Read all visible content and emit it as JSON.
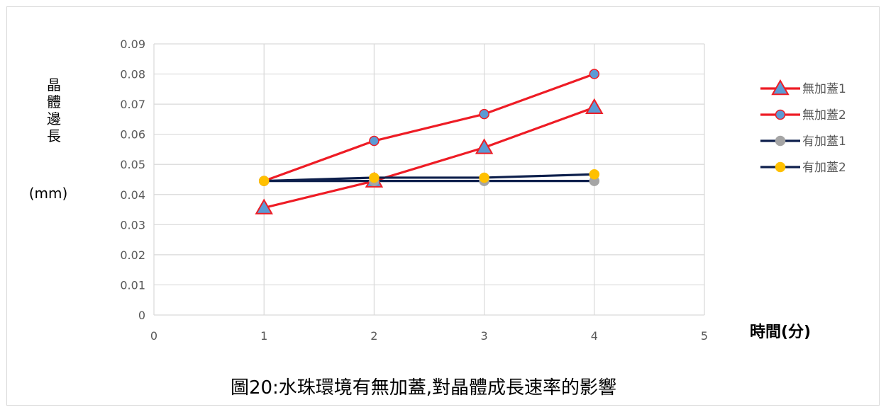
{
  "chart_data": {
    "type": "line",
    "title": "圖20:水珠環境有無加蓋,對晶體成長速率的影響",
    "xlabel": "時間(分)",
    "ylabel_chars": [
      "晶",
      "體",
      "邊",
      "長"
    ],
    "ylabel_unit": "(mm)",
    "xlim": [
      0,
      5
    ],
    "ylim": [
      0,
      0.09
    ],
    "x_ticks": [
      "0",
      "1",
      "2",
      "3",
      "4",
      "5"
    ],
    "y_ticks": [
      "0",
      "0.01",
      "0.02",
      "0.03",
      "0.04",
      "0.05",
      "0.06",
      "0.07",
      "0.08",
      "0.09"
    ],
    "grid": true,
    "legend_position": "right",
    "x": [
      1,
      2,
      3,
      4
    ],
    "series": [
      {
        "name": "無加蓋1",
        "values": [
          0.0356,
          0.0445,
          0.0556,
          0.0689
        ],
        "line_color": "#ee1c25",
        "marker": "triangle",
        "marker_fill": "#5b9bd5",
        "marker_stroke": "#ee1c25"
      },
      {
        "name": "無加蓋2",
        "values": [
          0.0445,
          0.0578,
          0.0667,
          0.08
        ],
        "line_color": "#ee1c25",
        "marker": "circle",
        "marker_fill": "#5b9bd5",
        "marker_stroke": "#ee1c25"
      },
      {
        "name": "有加蓋1",
        "values": [
          0.0445,
          0.0445,
          0.0445,
          0.0445
        ],
        "line_color": "#0d1f4c",
        "marker": "circle",
        "marker_fill": "#a5a5a5",
        "marker_stroke": "#a5a5a5"
      },
      {
        "name": "有加蓋2",
        "values": [
          0.0445,
          0.0456,
          0.0456,
          0.0467
        ],
        "line_color": "#0d1f4c",
        "marker": "circle",
        "marker_fill": "#ffc000",
        "marker_stroke": "#ffc000"
      }
    ],
    "colors": {
      "grid": "#d9d9d9",
      "axis_text": "#595959"
    }
  }
}
